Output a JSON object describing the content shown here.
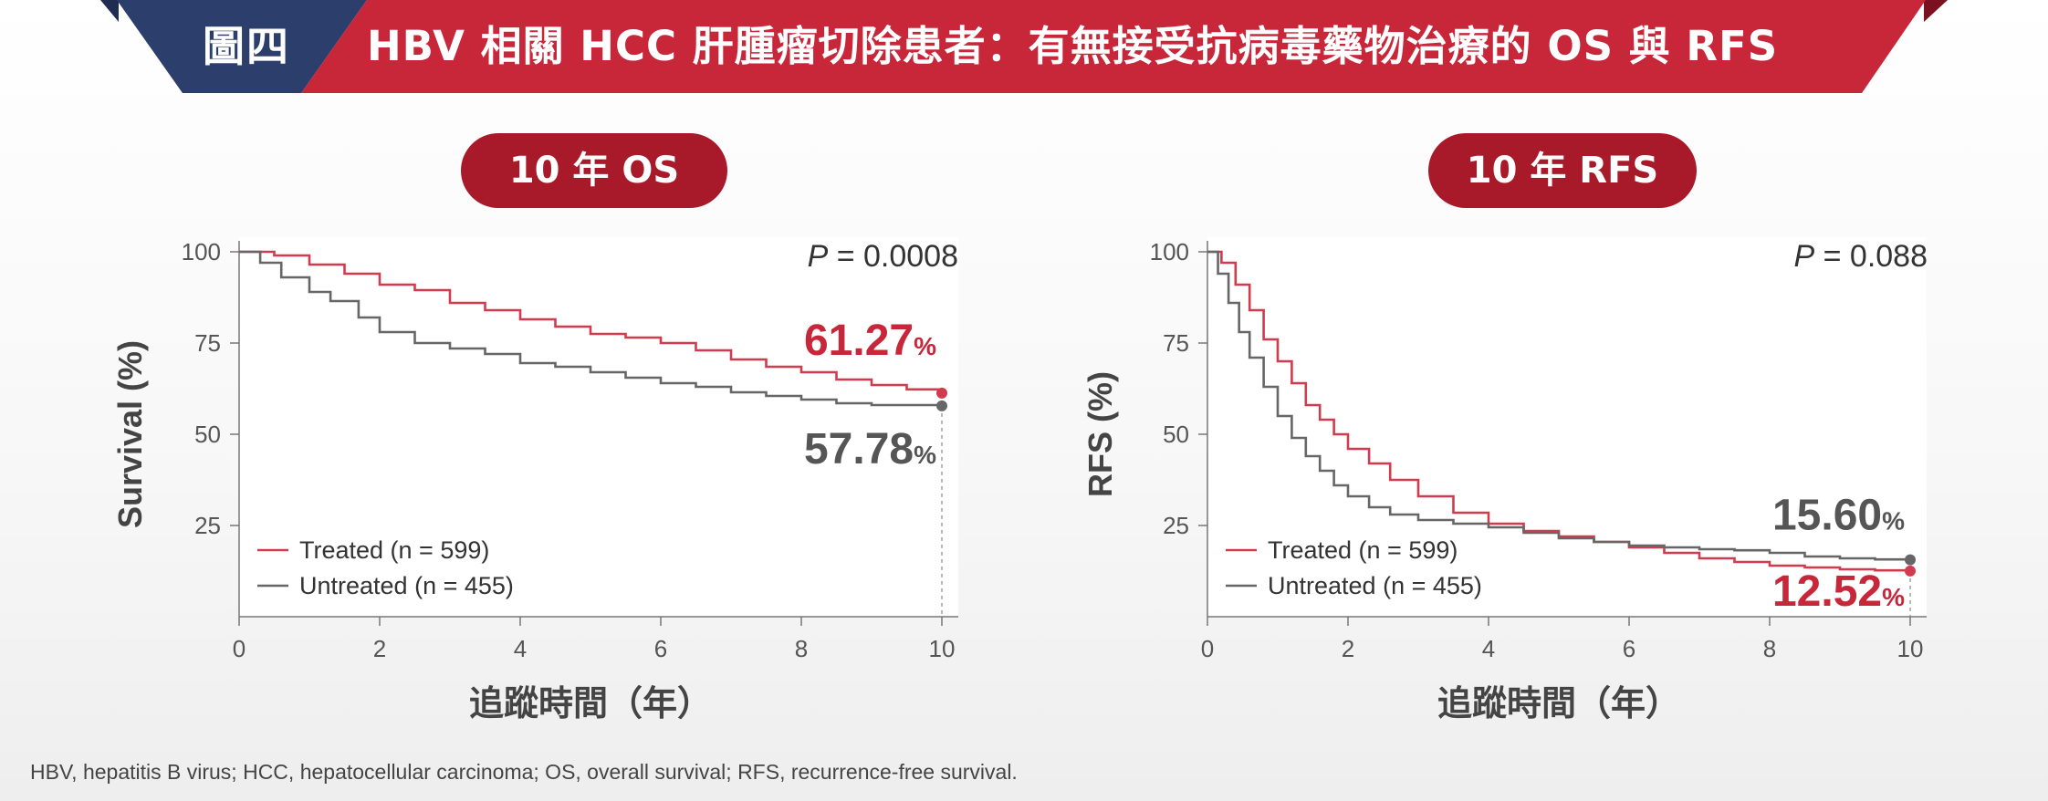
{
  "header": {
    "figure_label": "圖四",
    "title": "HBV 相關 HCC 肝腫瘤切除患者：有無接受抗病毒藥物治療的 OS 與 RFS",
    "colors": {
      "navy": "#2c3e6b",
      "red": "#c8273a",
      "dark_red": "#8a1424"
    }
  },
  "footnote": "HBV, hepatitis B virus; HCC, hepatocellular carcinoma; OS, overall survival; RFS, recurrence-free survival.",
  "chart_data": [
    {
      "type": "line",
      "step": true,
      "title": "10 年 OS",
      "xlabel": "追蹤時間（年）",
      "ylabel": "Survival (%)",
      "xlim": [
        0,
        10
      ],
      "ylim": [
        0,
        100
      ],
      "xticks": [
        0,
        2,
        4,
        6,
        8,
        10
      ],
      "yticks": [
        25,
        50,
        75,
        100
      ],
      "p_label": "P",
      "p_value": "= 0.0008",
      "legend_position": "bottom-left",
      "series": [
        {
          "name": "Treated (n = 599)",
          "color": "#d23a4e",
          "end_label": "61.27",
          "end_value": 61.27,
          "points": [
            [
              0,
              100
            ],
            [
              0.5,
              99
            ],
            [
              1,
              96.5
            ],
            [
              1.5,
              94
            ],
            [
              2,
              91
            ],
            [
              2.5,
              89.5
            ],
            [
              3,
              86
            ],
            [
              3.5,
              84
            ],
            [
              4,
              81.5
            ],
            [
              4.5,
              79.5
            ],
            [
              5,
              77.5
            ],
            [
              5.5,
              76.5
            ],
            [
              6,
              75
            ],
            [
              6.5,
              73
            ],
            [
              7,
              70.5
            ],
            [
              7.5,
              68.5
            ],
            [
              8,
              67
            ],
            [
              8.5,
              65
            ],
            [
              9,
              63.5
            ],
            [
              9.5,
              62.3
            ],
            [
              10,
              61.27
            ]
          ]
        },
        {
          "name": "Untreated (n = 455)",
          "color": "#666666",
          "end_label": "57.78",
          "end_value": 57.78,
          "points": [
            [
              0,
              100
            ],
            [
              0.3,
              97
            ],
            [
              0.6,
              93
            ],
            [
              1,
              89
            ],
            [
              1.3,
              86.5
            ],
            [
              1.7,
              82
            ],
            [
              2,
              78
            ],
            [
              2.5,
              75
            ],
            [
              3,
              73.5
            ],
            [
              3.5,
              72
            ],
            [
              4,
              69.5
            ],
            [
              4.5,
              68.5
            ],
            [
              5,
              67
            ],
            [
              5.5,
              65.5
            ],
            [
              6,
              64
            ],
            [
              6.5,
              63
            ],
            [
              7,
              61.5
            ],
            [
              7.5,
              60.5
            ],
            [
              8,
              59.5
            ],
            [
              8.5,
              58.5
            ],
            [
              9,
              58
            ],
            [
              10,
              57.78
            ]
          ]
        }
      ]
    },
    {
      "type": "line",
      "step": true,
      "title": "10 年 RFS",
      "xlabel": "追蹤時間（年）",
      "ylabel": "RFS (%)",
      "xlim": [
        0,
        10
      ],
      "ylim": [
        0,
        100
      ],
      "xticks": [
        0,
        2,
        4,
        6,
        8,
        10
      ],
      "yticks": [
        25,
        50,
        75,
        100
      ],
      "p_label": "P",
      "p_value": "= 0.088",
      "legend_position": "bottom-left",
      "series": [
        {
          "name": "Treated (n = 599)",
          "color": "#d23a4e",
          "end_label": "12.52",
          "end_value": 12.52,
          "points": [
            [
              0,
              100
            ],
            [
              0.2,
              97
            ],
            [
              0.4,
              91
            ],
            [
              0.6,
              84
            ],
            [
              0.8,
              76
            ],
            [
              1,
              70
            ],
            [
              1.2,
              64
            ],
            [
              1.4,
              58
            ],
            [
              1.6,
              54
            ],
            [
              1.8,
              50
            ],
            [
              2,
              46
            ],
            [
              2.3,
              42
            ],
            [
              2.6,
              37.5
            ],
            [
              3,
              33
            ],
            [
              3.5,
              28.5
            ],
            [
              4,
              25.5
            ],
            [
              4.5,
              23.5
            ],
            [
              5,
              22
            ],
            [
              5.5,
              20.5
            ],
            [
              6,
              19
            ],
            [
              6.5,
              17.5
            ],
            [
              7,
              16
            ],
            [
              7.5,
              15
            ],
            [
              8,
              14
            ],
            [
              8.5,
              13.5
            ],
            [
              9,
              13
            ],
            [
              9.5,
              12.7
            ],
            [
              10,
              12.52
            ]
          ]
        },
        {
          "name": "Untreated (n = 455)",
          "color": "#666666",
          "end_label": "15.60",
          "end_value": 15.6,
          "points": [
            [
              0,
              100
            ],
            [
              0.15,
              94
            ],
            [
              0.3,
              86
            ],
            [
              0.45,
              78
            ],
            [
              0.6,
              71
            ],
            [
              0.8,
              63
            ],
            [
              1,
              55
            ],
            [
              1.2,
              49
            ],
            [
              1.4,
              44
            ],
            [
              1.6,
              40
            ],
            [
              1.8,
              36
            ],
            [
              2,
              33
            ],
            [
              2.3,
              30
            ],
            [
              2.6,
              28
            ],
            [
              3,
              26.5
            ],
            [
              3.5,
              25.5
            ],
            [
              4,
              24.5
            ],
            [
              4.5,
              23
            ],
            [
              5,
              21.5
            ],
            [
              5.5,
              20.5
            ],
            [
              6,
              19.5
            ],
            [
              6.5,
              19
            ],
            [
              7,
              18.5
            ],
            [
              7.5,
              18.2
            ],
            [
              8,
              17.5
            ],
            [
              8.5,
              16.5
            ],
            [
              9,
              16
            ],
            [
              9.5,
              15.7
            ],
            [
              10,
              15.6
            ]
          ]
        }
      ]
    }
  ]
}
